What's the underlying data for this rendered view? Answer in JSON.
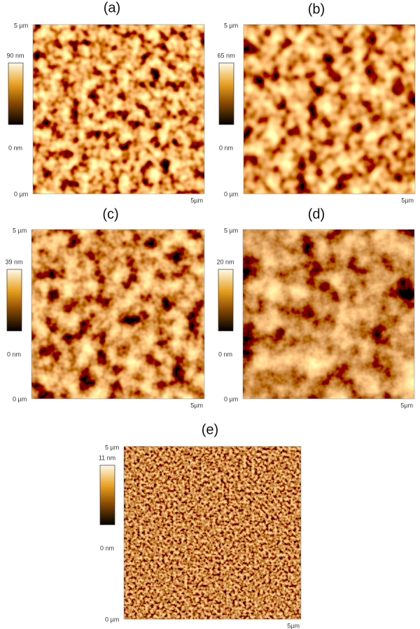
{
  "panels": [
    {
      "label": "(a)",
      "y_top": "5 µm",
      "y_bottom": "0 µm",
      "x_right": "5µm",
      "scale_max": "90 nm",
      "scale_min": "0 nm"
    },
    {
      "label": "(b)",
      "y_top": "5 µm",
      "y_bottom": "0 µm",
      "x_right": "5µm",
      "scale_max": "65 nm",
      "scale_min": "0 nm"
    },
    {
      "label": "(c)",
      "y_top": "5 µm",
      "y_bottom": "0 µm",
      "x_right": "5µm",
      "scale_max": "39 nm",
      "scale_min": "0 nm"
    },
    {
      "label": "(d)",
      "y_top": "5 µm",
      "y_bottom": "0 µm",
      "x_right": "5µm",
      "scale_max": "20 nm",
      "scale_min": "0 nm"
    },
    {
      "label": "(e)",
      "y_top": "5 µm",
      "y_bottom": "0 µm",
      "x_right": "5µm",
      "scale_max": "11 nm",
      "scale_min": "0 nm"
    }
  ]
}
